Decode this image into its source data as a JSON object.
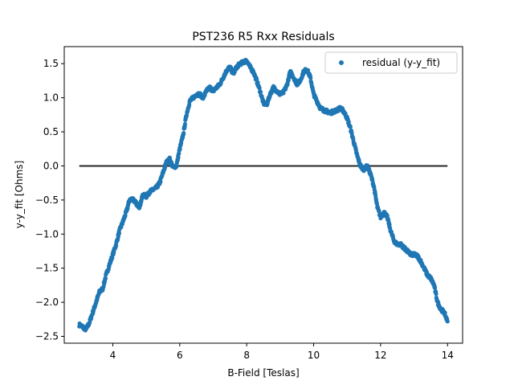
{
  "colors": {
    "marker": "#1f77b4",
    "zero_line": "#000000",
    "axes": "#000000",
    "background": "#ffffff"
  },
  "chart_data": {
    "type": "scatter",
    "title": "PST236 R5 Rxx Residuals",
    "xlabel": "B-Field [Teslas]",
    "ylabel": "y-y_fit [Ohms]",
    "xlim": [
      2.55,
      14.45
    ],
    "ylim": [
      -2.6,
      1.75
    ],
    "xticks": [
      4,
      6,
      8,
      10,
      12,
      14
    ],
    "xtick_labels": [
      "4",
      "6",
      "8",
      "10",
      "12",
      "14"
    ],
    "yticks": [
      -2.5,
      -2.0,
      -1.5,
      -1.0,
      -0.5,
      0.0,
      0.5,
      1.0,
      1.5
    ],
    "ytick_labels": [
      "−2.5",
      "−2.0",
      "−1.5",
      "−1.0",
      "−0.5",
      "0.0",
      "0.5",
      "1.0",
      "1.5"
    ],
    "grid": false,
    "legend": {
      "position": "upper right",
      "entries": [
        "residual (y-y_fit)"
      ]
    },
    "reference_line": {
      "x": [
        3.0,
        14.0
      ],
      "y": [
        0.0,
        0.0
      ]
    },
    "series": [
      {
        "name": "residual (y-y_fit)",
        "points": [
          [
            3.0,
            -2.33
          ],
          [
            3.1,
            -2.36
          ],
          [
            3.2,
            -2.4
          ],
          [
            3.3,
            -2.3
          ],
          [
            3.4,
            -2.15
          ],
          [
            3.5,
            -2.0
          ],
          [
            3.6,
            -1.85
          ],
          [
            3.7,
            -1.8
          ],
          [
            3.8,
            -1.6
          ],
          [
            3.9,
            -1.45
          ],
          [
            4.0,
            -1.3
          ],
          [
            4.1,
            -1.15
          ],
          [
            4.2,
            -0.95
          ],
          [
            4.3,
            -0.82
          ],
          [
            4.4,
            -0.68
          ],
          [
            4.5,
            -0.5
          ],
          [
            4.6,
            -0.48
          ],
          [
            4.7,
            -0.55
          ],
          [
            4.8,
            -0.6
          ],
          [
            4.9,
            -0.42
          ],
          [
            5.0,
            -0.45
          ],
          [
            5.1,
            -0.38
          ],
          [
            5.2,
            -0.35
          ],
          [
            5.3,
            -0.32
          ],
          [
            5.4,
            -0.25
          ],
          [
            5.5,
            -0.1
          ],
          [
            5.6,
            0.05
          ],
          [
            5.7,
            0.1
          ],
          [
            5.8,
            -0.02
          ],
          [
            5.9,
            0.0
          ],
          [
            6.0,
            0.25
          ],
          [
            6.1,
            0.45
          ],
          [
            6.2,
            0.75
          ],
          [
            6.3,
            0.95
          ],
          [
            6.4,
            1.0
          ],
          [
            6.5,
            1.05
          ],
          [
            6.6,
            1.05
          ],
          [
            6.7,
            1.0
          ],
          [
            6.8,
            1.1
          ],
          [
            6.9,
            1.15
          ],
          [
            7.0,
            1.1
          ],
          [
            7.1,
            1.15
          ],
          [
            7.2,
            1.2
          ],
          [
            7.3,
            1.3
          ],
          [
            7.4,
            1.4
          ],
          [
            7.5,
            1.45
          ],
          [
            7.6,
            1.35
          ],
          [
            7.7,
            1.45
          ],
          [
            7.8,
            1.5
          ],
          [
            7.9,
            1.52
          ],
          [
            8.0,
            1.55
          ],
          [
            8.1,
            1.45
          ],
          [
            8.2,
            1.38
          ],
          [
            8.3,
            1.25
          ],
          [
            8.4,
            1.1
          ],
          [
            8.5,
            0.92
          ],
          [
            8.6,
            0.9
          ],
          [
            8.7,
            1.05
          ],
          [
            8.8,
            1.15
          ],
          [
            8.9,
            1.1
          ],
          [
            9.0,
            1.05
          ],
          [
            9.1,
            1.08
          ],
          [
            9.2,
            1.18
          ],
          [
            9.3,
            1.38
          ],
          [
            9.4,
            1.3
          ],
          [
            9.5,
            1.2
          ],
          [
            9.6,
            1.25
          ],
          [
            9.7,
            1.38
          ],
          [
            9.8,
            1.42
          ],
          [
            9.9,
            1.3
          ],
          [
            10.0,
            1.05
          ],
          [
            10.1,
            0.95
          ],
          [
            10.2,
            0.85
          ],
          [
            10.3,
            0.82
          ],
          [
            10.4,
            0.8
          ],
          [
            10.5,
            0.78
          ],
          [
            10.6,
            0.8
          ],
          [
            10.7,
            0.82
          ],
          [
            10.8,
            0.85
          ],
          [
            10.9,
            0.8
          ],
          [
            11.0,
            0.7
          ],
          [
            11.1,
            0.55
          ],
          [
            11.2,
            0.35
          ],
          [
            11.3,
            0.15
          ],
          [
            11.4,
            0.0
          ],
          [
            11.5,
            -0.05
          ],
          [
            11.6,
            0.0
          ],
          [
            11.7,
            -0.12
          ],
          [
            11.8,
            -0.3
          ],
          [
            11.9,
            -0.6
          ],
          [
            12.0,
            -0.75
          ],
          [
            12.1,
            -0.68
          ],
          [
            12.2,
            -0.75
          ],
          [
            12.3,
            -0.95
          ],
          [
            12.4,
            -1.1
          ],
          [
            12.5,
            -1.15
          ],
          [
            12.6,
            -1.15
          ],
          [
            12.7,
            -1.2
          ],
          [
            12.8,
            -1.25
          ],
          [
            12.9,
            -1.3
          ],
          [
            13.0,
            -1.3
          ],
          [
            13.1,
            -1.32
          ],
          [
            13.2,
            -1.4
          ],
          [
            13.3,
            -1.5
          ],
          [
            13.4,
            -1.6
          ],
          [
            13.5,
            -1.65
          ],
          [
            13.6,
            -1.75
          ],
          [
            13.7,
            -2.0
          ],
          [
            13.8,
            -2.1
          ],
          [
            13.9,
            -2.15
          ],
          [
            14.0,
            -2.28
          ]
        ]
      }
    ]
  }
}
